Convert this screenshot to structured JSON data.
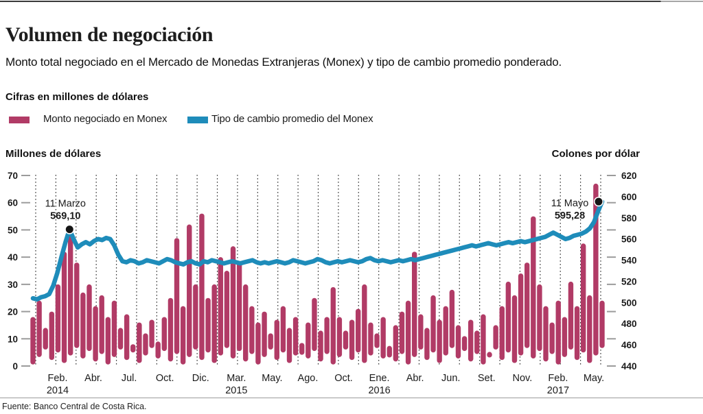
{
  "header": {
    "title": "Volumen de negociación",
    "subtitle": "Monto total negociado en el Mercado de Monedas Extranjeras (Monex) y tipo de cambio promedio ponderado.",
    "units_note": "Cifras en millones de dólares"
  },
  "legend": [
    {
      "label": "Monto negociado en Monex",
      "color": "#b13b66"
    },
    {
      "label": "Tipo de cambio promedio del Monex",
      "color": "#1e8cba"
    }
  ],
  "axes": {
    "left_title": "Millones de dólares",
    "right_title": "Colones por dólar"
  },
  "footer": {
    "source": "Fuente: Banco Central de Costa Rica."
  },
  "chart_data": {
    "type": "bar+line-dual-axis",
    "title": "Volumen de negociación",
    "x_range": [
      "Feb. 2014",
      "May. 2017"
    ],
    "x_labels": [
      {
        "month": "Feb.",
        "year": "2014"
      },
      {
        "month": "Abr."
      },
      {
        "month": "Jul."
      },
      {
        "month": "Oct."
      },
      {
        "month": "Dic."
      },
      {
        "month": "Mar.",
        "year": "2015"
      },
      {
        "month": "May."
      },
      {
        "month": "Ago."
      },
      {
        "month": "Oct."
      },
      {
        "month": "Ene.",
        "year": "2016"
      },
      {
        "month": "Abr."
      },
      {
        "month": "Jun."
      },
      {
        "month": "Set."
      },
      {
        "month": "Nov."
      },
      {
        "month": "Feb.",
        "year": "2017"
      },
      {
        "month": "May."
      }
    ],
    "left_axis": {
      "title": "Millones de dólares",
      "range": [
        0,
        70
      ],
      "ticks": [
        70,
        60,
        50,
        40,
        30,
        20,
        10,
        0
      ]
    },
    "right_axis": {
      "title": "Colones por dólar",
      "range": [
        440,
        620
      ],
      "ticks": [
        620,
        600,
        580,
        560,
        540,
        520,
        500,
        480,
        460,
        440
      ]
    },
    "grid": {
      "vertical_dotted_lines": 29,
      "color": "#2e2e2e",
      "tick_dash_color": "#9b9b9b"
    },
    "bar_series": {
      "name": "Monto negociado en Monex",
      "unit": "millones de dólares",
      "color": "#b13b66",
      "values": [
        18,
        24,
        14,
        20,
        30,
        42,
        50,
        38,
        27,
        30,
        22,
        26,
        18,
        24,
        14,
        19,
        8,
        16,
        12,
        17,
        9,
        18,
        25,
        47,
        22,
        52,
        30,
        56,
        25,
        30,
        40,
        35,
        44,
        38,
        30,
        22,
        16,
        20,
        12,
        17,
        22,
        14,
        18,
        6,
        16,
        25,
        13,
        18,
        29,
        18,
        13,
        17,
        21,
        30,
        16,
        12,
        18,
        5,
        15,
        20,
        24,
        42,
        19,
        14,
        26,
        17,
        22,
        28,
        15,
        11,
        17,
        13,
        19,
        5,
        15,
        22,
        31,
        26,
        34,
        38,
        55,
        30,
        22,
        16,
        24,
        18,
        31,
        22,
        45,
        26,
        67,
        24
      ]
    },
    "line_series": {
      "name": "Tipo de cambio promedio del Monex",
      "unit": "colones por dólar",
      "color": "#1e8cba",
      "values": [
        504,
        503,
        505,
        506,
        508,
        516,
        528,
        543,
        557,
        569.1,
        560,
        552,
        555,
        557,
        555,
        558,
        560,
        559,
        561,
        560,
        554,
        545,
        539,
        538,
        540,
        539,
        537,
        538,
        540,
        539,
        538,
        537,
        539,
        541,
        540,
        538,
        537,
        536,
        538,
        539,
        537,
        536,
        539,
        538,
        540,
        539,
        538,
        537,
        538,
        539,
        538,
        537,
        538,
        539,
        540,
        538,
        537,
        538,
        537,
        538,
        539,
        538,
        537,
        538,
        540,
        539,
        538,
        537,
        538,
        539,
        541,
        540,
        538,
        537,
        538,
        539,
        538,
        539,
        540,
        539,
        538,
        539,
        541,
        542,
        540,
        539,
        540,
        539,
        538,
        539,
        540,
        539,
        540,
        541,
        540,
        541,
        542,
        543,
        544,
        545,
        546,
        547,
        548,
        549,
        550,
        551,
        552,
        553,
        554,
        553,
        554,
        555,
        556,
        555,
        554,
        555,
        556,
        557,
        556,
        557,
        558,
        557,
        558,
        559,
        560,
        561,
        562,
        564,
        566,
        564,
        562,
        560,
        561,
        563,
        564,
        565,
        567,
        570,
        576,
        586,
        595.28
      ]
    },
    "annotations": [
      {
        "date_label": "11 Marzo",
        "value_label": "569,10",
        "value": 569.1,
        "line_index": 9,
        "dot_dx": 0,
        "label_dx": -6,
        "label_dy1": -33,
        "label_dy2": -15
      },
      {
        "date_label": "11 Mayo",
        "value_label": "595,28",
        "value": 595.28,
        "line_index": 140,
        "dot_dx": -5,
        "label_dx": -42,
        "label_dy1": 7,
        "label_dy2": 25
      }
    ]
  }
}
